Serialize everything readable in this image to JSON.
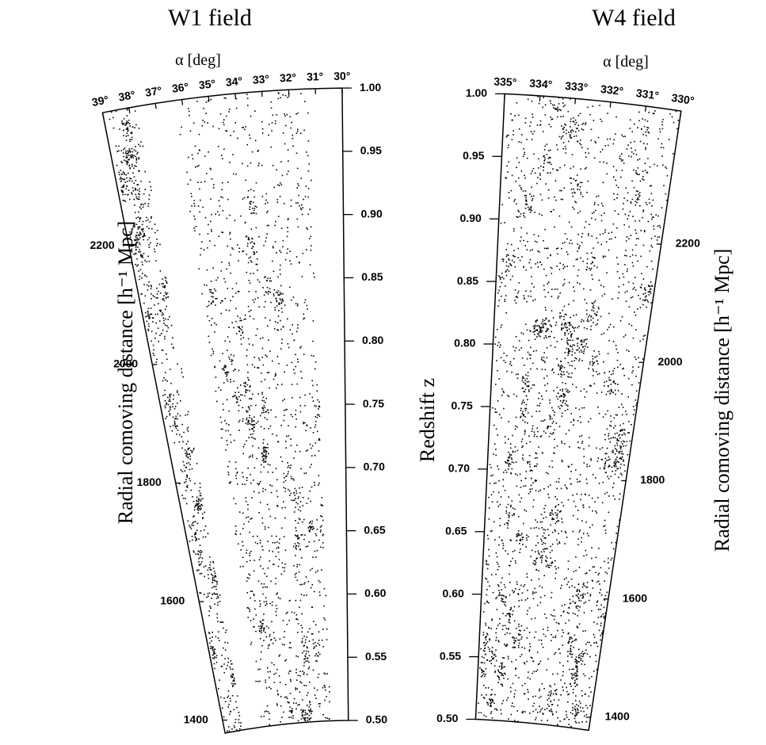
{
  "chart_data": [
    {
      "type": "cone",
      "title": "W1 field",
      "xlabel": "α [deg]",
      "ylabel": "Radial comoving distance [h⁻¹ Mpc]",
      "zlabel": "Redshift z",
      "ralim": [
        39,
        30
      ],
      "raticks": [
        {
          "value": 39,
          "label": "39°"
        },
        {
          "value": 38,
          "label": "38°"
        },
        {
          "value": 37,
          "label": "37°"
        },
        {
          "value": 36,
          "label": "36°"
        },
        {
          "value": 35,
          "label": "35°"
        },
        {
          "value": 34,
          "label": "34°"
        },
        {
          "value": 33,
          "label": "33°"
        },
        {
          "value": 32,
          "label": "32°"
        },
        {
          "value": 31,
          "label": "31°"
        },
        {
          "value": 30,
          "label": "30°"
        }
      ],
      "zlim": [
        0.5,
        1.0
      ],
      "zticks": [
        {
          "value": 0.5,
          "label": "0.50"
        },
        0.55,
        {
          "value": 0.6,
          "label": "0.60"
        },
        0.65,
        {
          "value": 0.7,
          "label": "0.70"
        },
        0.75,
        {
          "value": 0.8,
          "label": "0.80"
        },
        0.85,
        {
          "value": 0.9,
          "label": "0.90"
        },
        0.95,
        {
          "value": 1.0,
          "label": "1.00"
        }
      ],
      "dlim": [
        1378,
        2425
      ],
      "dticks": [
        1400,
        1600,
        1800,
        2000,
        2200
      ]
    },
    {
      "type": "cone",
      "title": "W4 field",
      "xlabel": "α [deg]",
      "ylabel": "Radial comoving distance [h⁻¹ Mpc]",
      "ralim": [
        335,
        330
      ],
      "raticks": [
        {
          "value": 335,
          "label": "335°"
        },
        {
          "value": 334,
          "label": "334°"
        },
        {
          "value": 333,
          "label": "333°"
        },
        {
          "value": 332,
          "label": "332°"
        },
        {
          "value": 331,
          "label": "331°"
        },
        {
          "value": 330,
          "label": "330°"
        }
      ],
      "zlim": [
        0.5,
        1.0
      ],
      "zticks": [
        {
          "value": 0.5,
          "label": "0.50"
        },
        0.55,
        {
          "value": 0.6,
          "label": "0.60"
        },
        0.65,
        {
          "value": 0.7,
          "label": "0.70"
        },
        0.75,
        {
          "value": 0.8,
          "label": "0.80"
        },
        0.85,
        {
          "value": 0.9,
          "label": "0.90"
        },
        0.95,
        {
          "value": 1.0,
          "label": "1.00"
        }
      ],
      "dlim": [
        1378,
        2425
      ],
      "dticks": [
        1400,
        1600,
        1800,
        2000,
        2200
      ]
    }
  ]
}
